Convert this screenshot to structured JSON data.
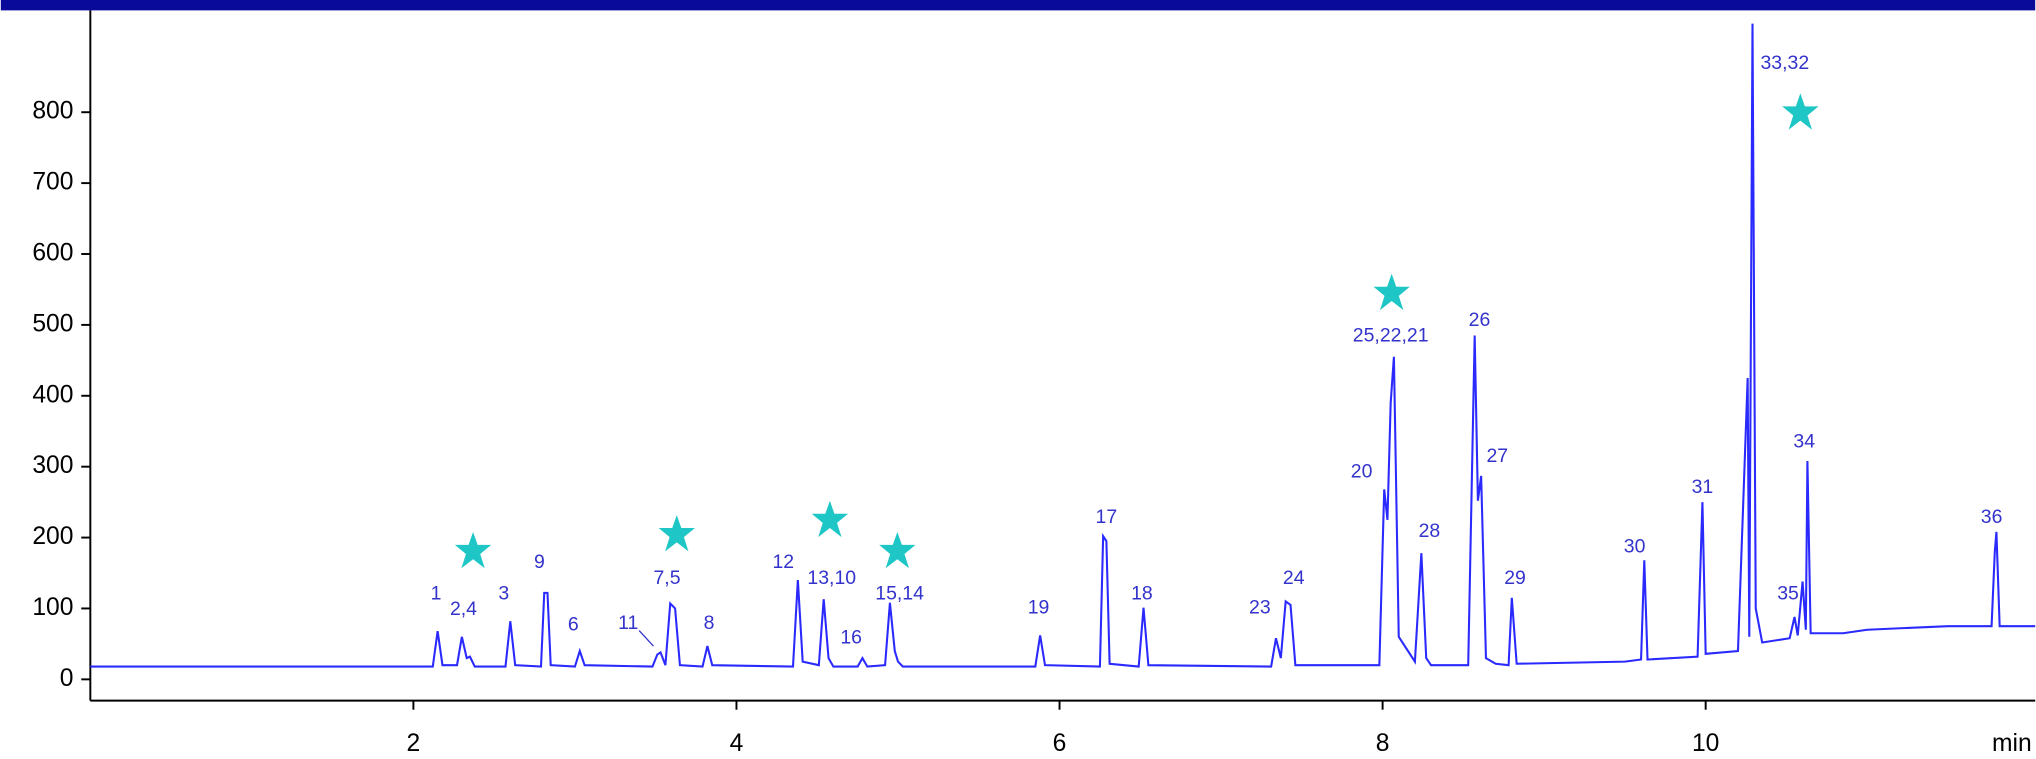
{
  "chart_data": {
    "type": "line",
    "x_label": "min",
    "xlim": [
      0,
      12.04
    ],
    "ylim": [
      -30,
      940
    ],
    "xticks": [
      2,
      4,
      6,
      8,
      10
    ],
    "yticks": [
      0,
      100,
      200,
      300,
      400,
      500,
      600,
      700,
      800
    ],
    "series": [
      {
        "color": "#2a2aff",
        "x": [
          0.0,
          2.12,
          2.15,
          2.18,
          2.27,
          2.3,
          2.33,
          2.35,
          2.38,
          2.57,
          2.6,
          2.63,
          2.79,
          2.81,
          2.83,
          2.85,
          3.0,
          3.03,
          3.06,
          3.48,
          3.51,
          3.53,
          3.56,
          3.59,
          3.62,
          3.65,
          3.79,
          3.82,
          3.85,
          4.35,
          4.38,
          4.41,
          4.51,
          4.54,
          4.57,
          4.6,
          4.75,
          4.78,
          4.81,
          4.92,
          4.95,
          4.98,
          5.0,
          5.03,
          5.85,
          5.88,
          5.91,
          6.25,
          6.27,
          6.29,
          6.31,
          6.49,
          6.52,
          6.55,
          7.31,
          7.34,
          7.37,
          7.4,
          7.43,
          7.46,
          7.98,
          8.01,
          8.03,
          8.05,
          8.07,
          8.1,
          8.2,
          8.24,
          8.27,
          8.3,
          8.53,
          8.57,
          8.59,
          8.61,
          8.64,
          8.7,
          8.78,
          8.8,
          8.83,
          9.5,
          9.6,
          9.62,
          9.64,
          9.95,
          9.98,
          10.0,
          10.2,
          10.26,
          10.27,
          10.29,
          10.31,
          10.35,
          10.52,
          10.55,
          10.57,
          10.6,
          10.62,
          10.63,
          10.65,
          10.85,
          11.0,
          11.5,
          11.77,
          11.79,
          11.8,
          11.82,
          12.04
        ],
        "values": [
          18,
          18,
          68,
          20,
          20,
          60,
          30,
          32,
          18,
          18,
          82,
          20,
          18,
          122,
          122,
          20,
          18,
          40,
          20,
          18,
          35,
          38,
          20,
          107,
          100,
          20,
          18,
          47,
          20,
          18,
          140,
          25,
          20,
          113,
          30,
          18,
          18,
          30,
          18,
          20,
          108,
          40,
          25,
          18,
          18,
          62,
          20,
          18,
          202,
          195,
          22,
          18,
          101,
          20,
          18,
          58,
          30,
          110,
          105,
          20,
          20,
          268,
          225,
          390,
          455,
          60,
          25,
          178,
          30,
          20,
          20,
          485,
          252,
          287,
          30,
          22,
          20,
          115,
          22,
          25,
          28,
          168,
          28,
          32,
          250,
          36,
          40,
          425,
          60,
          925,
          100,
          52,
          58,
          88,
          62,
          138,
          70,
          308,
          65,
          65,
          70,
          75,
          75,
          180,
          208,
          75,
          75
        ]
      }
    ],
    "annotations": [
      {
        "text": "1",
        "x": 2.14,
        "y": 120
      },
      {
        "text": "2,4",
        "x": 2.31,
        "y": 98
      },
      {
        "text": "3",
        "x": 2.56,
        "y": 120
      },
      {
        "text": "9",
        "x": 2.78,
        "y": 164
      },
      {
        "text": "6",
        "x": 2.99,
        "y": 76
      },
      {
        "text": "11",
        "x": 3.33,
        "y": 78
      },
      {
        "text": "7,5",
        "x": 3.57,
        "y": 142
      },
      {
        "text": "8",
        "x": 3.83,
        "y": 78
      },
      {
        "text": "12",
        "x": 4.29,
        "y": 164
      },
      {
        "text": "13,10",
        "x": 4.59,
        "y": 142
      },
      {
        "text": "16",
        "x": 4.71,
        "y": 58
      },
      {
        "text": "15,14",
        "x": 5.01,
        "y": 120
      },
      {
        "text": "19",
        "x": 5.87,
        "y": 100
      },
      {
        "text": "17",
        "x": 6.29,
        "y": 228
      },
      {
        "text": "18",
        "x": 6.51,
        "y": 120
      },
      {
        "text": "23",
        "x": 7.24,
        "y": 100
      },
      {
        "text": "24",
        "x": 7.45,
        "y": 142
      },
      {
        "text": "20",
        "x": 7.87,
        "y": 292
      },
      {
        "text": "25,22,21",
        "x": 8.05,
        "y": 484
      },
      {
        "text": "28",
        "x": 8.29,
        "y": 208
      },
      {
        "text": "26",
        "x": 8.6,
        "y": 506
      },
      {
        "text": "27",
        "x": 8.71,
        "y": 314
      },
      {
        "text": "29",
        "x": 8.82,
        "y": 142
      },
      {
        "text": "30",
        "x": 9.56,
        "y": 186
      },
      {
        "text": "31",
        "x": 9.98,
        "y": 270
      },
      {
        "text": "33,32",
        "x": 10.49,
        "y": 868
      },
      {
        "text": "35",
        "x": 10.51,
        "y": 120
      },
      {
        "text": "34",
        "x": 10.61,
        "y": 334
      },
      {
        "text": "36",
        "x": 11.77,
        "y": 228
      }
    ]
  }
}
